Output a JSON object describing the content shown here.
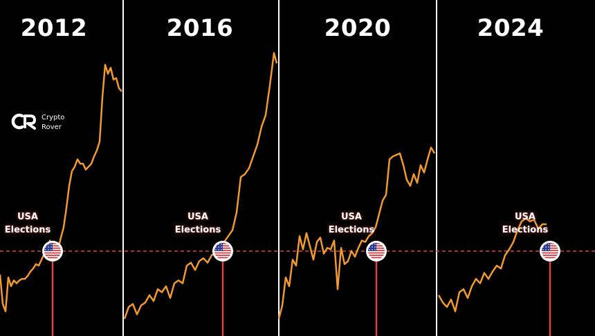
{
  "brand": {
    "line1": "Crypto",
    "line2": "Rover"
  },
  "event": {
    "line1": "USA",
    "line2": "Elections"
  },
  "colors": {
    "background": "#000000",
    "price_line": "#f29a2e",
    "reference_line": "#e0443e",
    "divider": "#ffffff",
    "text": "#ffffff"
  },
  "chart_data": [
    {
      "type": "line",
      "title": "2012",
      "annotation": "USA Elections",
      "x": [
        0,
        4,
        8,
        12,
        16,
        20,
        24,
        28,
        32,
        36,
        40,
        44,
        48,
        52,
        56,
        60,
        64,
        68,
        72,
        76,
        80,
        84,
        88,
        92,
        96,
        100,
        104,
        108,
        112,
        116,
        120,
        124,
        128,
        132,
        136,
        140,
        144,
        148,
        152,
        156,
        160,
        164,
        168,
        172,
        176
      ],
      "values": [
        0.3,
        0.1,
        0.05,
        0.28,
        0.22,
        0.26,
        0.24,
        0.26,
        0.27,
        0.27,
        0.29,
        0.32,
        0.34,
        0.37,
        0.36,
        0.4,
        0.44,
        0.46,
        0.53,
        0.47,
        0.44,
        0.47,
        0.55,
        0.62,
        0.75,
        0.9,
        1.0,
        1.03,
        1.08,
        1.05,
        1.05,
        1.01,
        1.03,
        1.05,
        1.1,
        1.14,
        1.2,
        1.5,
        1.72,
        1.66,
        1.7,
        1.62,
        1.63,
        1.56,
        1.54
      ],
      "event_x": 76
    },
    {
      "type": "line",
      "title": "2016",
      "annotation": "USA Elections",
      "x": [
        180,
        186,
        192,
        198,
        204,
        210,
        216,
        222,
        228,
        234,
        240,
        246,
        252,
        258,
        264,
        270,
        276,
        282,
        288,
        294,
        300,
        306,
        312,
        318,
        324,
        330,
        336,
        342,
        348,
        354,
        360,
        366,
        372,
        378,
        384,
        390,
        396,
        400
      ],
      "values": [
        0.0,
        0.08,
        0.1,
        0.03,
        0.09,
        0.11,
        0.16,
        0.12,
        0.2,
        0.18,
        0.22,
        0.14,
        0.24,
        0.26,
        0.24,
        0.36,
        0.38,
        0.33,
        0.39,
        0.41,
        0.38,
        0.43,
        0.45,
        0.48,
        0.52,
        0.56,
        0.6,
        0.72,
        0.96,
        0.98,
        1.02,
        1.1,
        1.18,
        1.3,
        1.38,
        1.58,
        1.8,
        1.73
      ],
      "event_x": 322
    },
    {
      "type": "line",
      "title": "2020",
      "annotation": "USA Elections",
      "x": [
        403,
        408,
        413,
        418,
        423,
        428,
        433,
        438,
        443,
        448,
        453,
        458,
        463,
        468,
        473,
        478,
        483,
        488,
        493,
        498,
        503,
        508,
        513,
        518,
        523,
        528,
        533,
        538,
        543,
        548,
        553,
        558,
        563,
        568,
        573,
        578,
        583,
        588,
        593,
        598,
        603,
        608,
        613,
        618,
        623,
        628
      ],
      "values": [
        0.0,
        0.09,
        0.28,
        0.22,
        0.4,
        0.36,
        0.56,
        0.47,
        0.58,
        0.49,
        0.4,
        0.52,
        0.55,
        0.44,
        0.48,
        0.47,
        0.53,
        0.2,
        0.48,
        0.37,
        0.39,
        0.46,
        0.42,
        0.48,
        0.53,
        0.52,
        0.56,
        0.58,
        0.62,
        0.71,
        0.8,
        0.84,
        1.08,
        1.1,
        1.11,
        1.12,
        1.04,
        0.94,
        0.9,
        0.98,
        0.92,
        1.04,
        0.99,
        1.08,
        1.16,
        1.12
      ],
      "event_x": 544
    },
    {
      "type": "line",
      "title": "2024",
      "annotation": "USA Elections",
      "x": [
        634,
        640,
        646,
        652,
        658,
        664,
        670,
        676,
        682,
        688,
        694,
        700,
        706,
        712,
        718,
        724,
        730,
        736,
        742,
        748,
        754,
        760,
        766,
        772,
        778,
        784,
        790
      ],
      "values": [
        0.16,
        0.11,
        0.08,
        0.13,
        0.05,
        0.18,
        0.2,
        0.14,
        0.22,
        0.27,
        0.24,
        0.31,
        0.27,
        0.32,
        0.36,
        0.34,
        0.43,
        0.47,
        0.52,
        0.6,
        0.66,
        0.68,
        0.66,
        0.67,
        0.61,
        0.64,
        0.64
      ],
      "event_x": 795
    }
  ]
}
